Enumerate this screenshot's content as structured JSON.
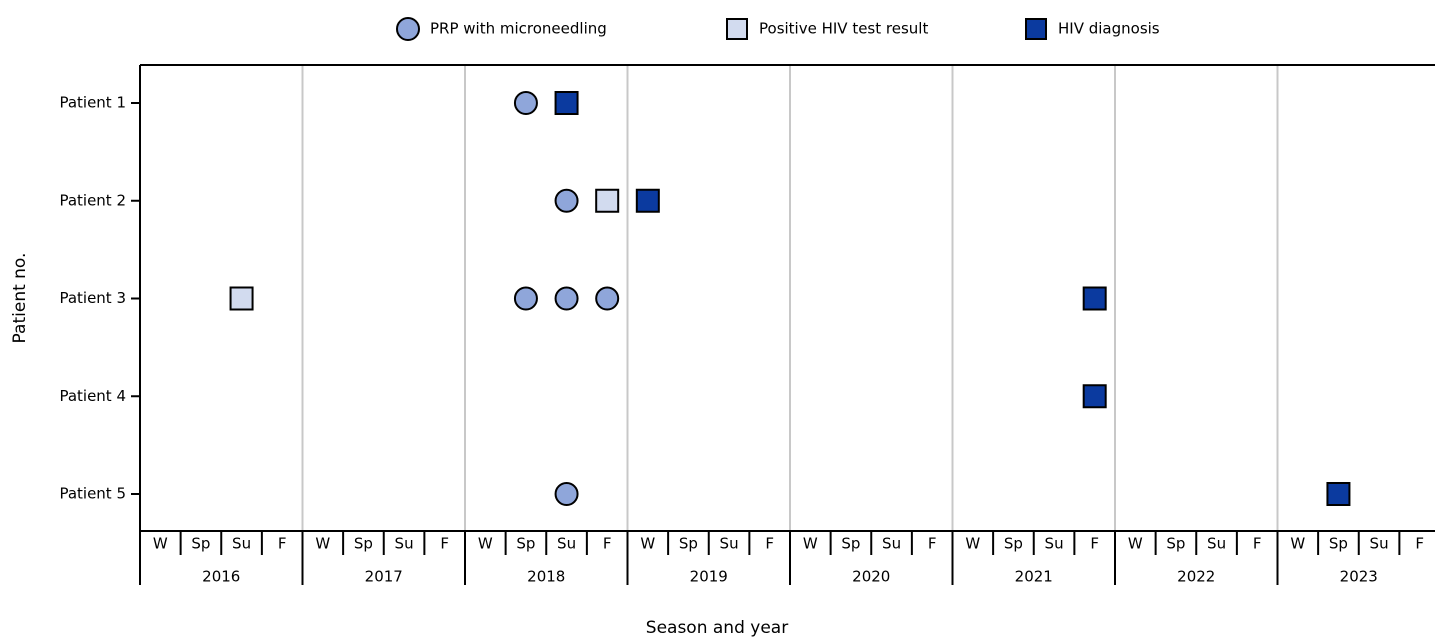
{
  "chart_data": {
    "type": "timeline",
    "x_label": "Season and year",
    "y_label": "Patient no.",
    "categories": [
      "Patient 1",
      "Patient 2",
      "Patient 3",
      "Patient 4",
      "Patient 5"
    ],
    "years": [
      "2016",
      "2017",
      "2018",
      "2019",
      "2020",
      "2021",
      "2022",
      "2023"
    ],
    "seasons": [
      "W",
      "Sp",
      "Su",
      "F"
    ],
    "grid": true,
    "legend": "top",
    "series": [
      {
        "name": "PRP with microneedling",
        "shape": "circle",
        "color": "#8fa6da",
        "points": [
          {
            "patient": "Patient 1",
            "year": "2018",
            "season": "Sp"
          },
          {
            "patient": "Patient 2",
            "year": "2018",
            "season": "Su"
          },
          {
            "patient": "Patient 3",
            "year": "2018",
            "season": "Sp"
          },
          {
            "patient": "Patient 3",
            "year": "2018",
            "season": "Su"
          },
          {
            "patient": "Patient 3",
            "year": "2018",
            "season": "F"
          },
          {
            "patient": "Patient 5",
            "year": "2018",
            "season": "Su"
          }
        ]
      },
      {
        "name": "Positive HIV test result",
        "shape": "square",
        "color": "#d2dbef",
        "points": [
          {
            "patient": "Patient 2",
            "year": "2018",
            "season": "F"
          },
          {
            "patient": "Patient 3",
            "year": "2016",
            "season": "Su"
          }
        ]
      },
      {
        "name": "HIV diagnosis",
        "shape": "square",
        "color": "#0b3a9f",
        "points": [
          {
            "patient": "Patient 1",
            "year": "2018",
            "season": "Su"
          },
          {
            "patient": "Patient 2",
            "year": "2019",
            "season": "W"
          },
          {
            "patient": "Patient 3",
            "year": "2021",
            "season": "F"
          },
          {
            "patient": "Patient 4",
            "year": "2021",
            "season": "F"
          },
          {
            "patient": "Patient 5",
            "year": "2023",
            "season": "Sp"
          }
        ]
      }
    ]
  }
}
